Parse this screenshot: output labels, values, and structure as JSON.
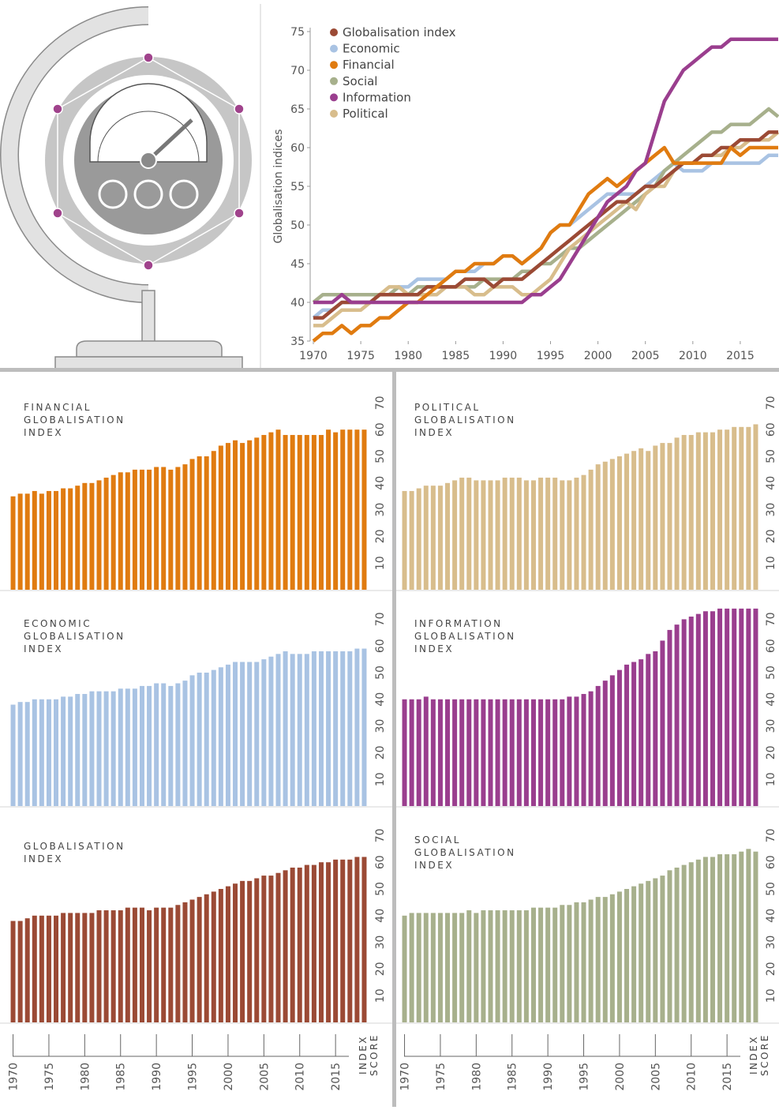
{
  "chart_data": [
    {
      "type": "line",
      "ylabel": "Globalisation indices",
      "x": [
        1970,
        1971,
        1972,
        1973,
        1974,
        1975,
        1976,
        1977,
        1978,
        1979,
        1980,
        1981,
        1982,
        1983,
        1984,
        1985,
        1986,
        1987,
        1988,
        1989,
        1990,
        1991,
        1992,
        1993,
        1994,
        1995,
        1996,
        1997,
        1998,
        1999,
        2000,
        2001,
        2002,
        2003,
        2004,
        2005,
        2006,
        2007,
        2008,
        2009,
        2010,
        2011,
        2012,
        2013,
        2014,
        2015,
        2016,
        2017,
        2018,
        2019
      ],
      "xlim": [
        1970,
        2019
      ],
      "xticks": [
        1970,
        1975,
        1980,
        1985,
        1990,
        1995,
        2000,
        2005,
        2010,
        2015
      ],
      "ylim": [
        35,
        75
      ],
      "yticks": [
        35,
        40,
        45,
        50,
        55,
        60,
        65,
        70,
        75
      ],
      "series": [
        {
          "name": "Globalisation index",
          "color": "#9b4a35",
          "values": [
            38,
            38,
            39,
            40,
            40,
            40,
            40,
            41,
            41,
            41,
            41,
            41,
            42,
            42,
            42,
            42,
            43,
            43,
            43,
            42,
            43,
            43,
            43,
            44,
            45,
            46,
            47,
            48,
            49,
            50,
            51,
            52,
            53,
            53,
            54,
            55,
            55,
            56,
            57,
            58,
            58,
            59,
            59,
            60,
            60,
            61,
            61,
            61,
            62,
            62
          ]
        },
        {
          "name": "Economic",
          "color": "#a9c3e3",
          "values": [
            38,
            39,
            39,
            40,
            40,
            40,
            40,
            41,
            41,
            42,
            42,
            43,
            43,
            43,
            43,
            44,
            44,
            44,
            45,
            45,
            46,
            46,
            45,
            46,
            47,
            49,
            50,
            50,
            51,
            52,
            53,
            54,
            54,
            54,
            54,
            55,
            56,
            57,
            58,
            57,
            57,
            57,
            58,
            58,
            58,
            58,
            58,
            58,
            59,
            59
          ]
        },
        {
          "name": "Financial",
          "color": "#e07b10",
          "values": [
            35,
            36,
            36,
            37,
            36,
            37,
            37,
            38,
            38,
            39,
            40,
            40,
            41,
            42,
            43,
            44,
            44,
            45,
            45,
            45,
            46,
            46,
            45,
            46,
            47,
            49,
            50,
            50,
            52,
            54,
            55,
            56,
            55,
            56,
            57,
            58,
            59,
            60,
            58,
            58,
            58,
            58,
            58,
            58,
            60,
            59,
            60,
            60,
            60,
            60
          ]
        },
        {
          "name": "Social",
          "color": "#a7b08c",
          "values": [
            40,
            41,
            41,
            41,
            41,
            41,
            41,
            41,
            41,
            42,
            41,
            42,
            42,
            42,
            42,
            42,
            42,
            42,
            43,
            43,
            43,
            43,
            44,
            44,
            45,
            45,
            46,
            47,
            47,
            48,
            49,
            50,
            51,
            52,
            53,
            54,
            55,
            57,
            58,
            59,
            60,
            61,
            62,
            62,
            63,
            63,
            63,
            64,
            65,
            64
          ]
        },
        {
          "name": "Information",
          "color": "#9a3e8e",
          "values": [
            40,
            40,
            40,
            41,
            40,
            40,
            40,
            40,
            40,
            40,
            40,
            40,
            40,
            40,
            40,
            40,
            40,
            40,
            40,
            40,
            40,
            40,
            40,
            41,
            41,
            42,
            43,
            45,
            47,
            49,
            51,
            53,
            54,
            55,
            57,
            58,
            62,
            66,
            68,
            70,
            71,
            72,
            73,
            73,
            74,
            74,
            74,
            74,
            74,
            74
          ]
        },
        {
          "name": "Political",
          "color": "#d8bd8c",
          "values": [
            37,
            37,
            38,
            39,
            39,
            39,
            40,
            41,
            42,
            42,
            41,
            41,
            41,
            41,
            42,
            42,
            42,
            41,
            41,
            42,
            42,
            42,
            41,
            41,
            42,
            43,
            45,
            47,
            48,
            49,
            50,
            51,
            52,
            53,
            52,
            54,
            55,
            55,
            57,
            58,
            58,
            59,
            59,
            59,
            60,
            60,
            61,
            61,
            61,
            62
          ]
        }
      ]
    },
    {
      "type": "bar",
      "title": [
        "FINANCIAL",
        "GLOBALISATION",
        "INDEX"
      ],
      "color": "#e07b10",
      "xlim": [
        1970,
        2019
      ],
      "ylim": [
        0,
        75
      ],
      "yticks": [
        10,
        20,
        30,
        40,
        50,
        60,
        70
      ],
      "values": [
        35,
        36,
        36,
        37,
        36,
        37,
        37,
        38,
        38,
        39,
        40,
        40,
        41,
        42,
        43,
        44,
        44,
        45,
        45,
        45,
        46,
        46,
        45,
        46,
        47,
        49,
        50,
        50,
        52,
        54,
        55,
        56,
        55,
        56,
        57,
        58,
        59,
        60,
        58,
        58,
        58,
        58,
        58,
        58,
        60,
        59,
        60,
        60,
        60,
        60
      ]
    },
    {
      "type": "bar",
      "title": [
        "POLITICAL",
        "GLOBALISATION",
        "INDEX"
      ],
      "color": "#d8bd8c",
      "xlim": [
        1970,
        2019
      ],
      "ylim": [
        0,
        75
      ],
      "yticks": [
        10,
        20,
        30,
        40,
        50,
        60,
        70
      ],
      "values": [
        37,
        37,
        38,
        39,
        39,
        39,
        40,
        41,
        42,
        42,
        41,
        41,
        41,
        41,
        42,
        42,
        42,
        41,
        41,
        42,
        42,
        42,
        41,
        41,
        42,
        43,
        45,
        47,
        48,
        49,
        50,
        51,
        52,
        53,
        52,
        54,
        55,
        55,
        57,
        58,
        58,
        59,
        59,
        59,
        60,
        60,
        61,
        61,
        61,
        62
      ]
    },
    {
      "type": "bar",
      "title": [
        "ECONOMIC",
        "GLOBALISATION",
        "INDEX"
      ],
      "color": "#a9c3e3",
      "xlim": [
        1970,
        2019
      ],
      "ylim": [
        0,
        75
      ],
      "yticks": [
        10,
        20,
        30,
        40,
        50,
        60,
        70
      ],
      "values": [
        38,
        39,
        39,
        40,
        40,
        40,
        40,
        41,
        41,
        42,
        42,
        43,
        43,
        43,
        43,
        44,
        44,
        44,
        45,
        45,
        46,
        46,
        45,
        46,
        47,
        49,
        50,
        50,
        51,
        52,
        53,
        54,
        54,
        54,
        54,
        55,
        56,
        57,
        58,
        57,
        57,
        57,
        58,
        58,
        58,
        58,
        58,
        58,
        59,
        59
      ]
    },
    {
      "type": "bar",
      "title": [
        "INFORMATION",
        "GLOBALISATION",
        "INDEX"
      ],
      "color": "#9a3e8e",
      "xlim": [
        1970,
        2019
      ],
      "ylim": [
        0,
        75
      ],
      "yticks": [
        10,
        20,
        30,
        40,
        50,
        60,
        70
      ],
      "values": [
        40,
        40,
        40,
        41,
        40,
        40,
        40,
        40,
        40,
        40,
        40,
        40,
        40,
        40,
        40,
        40,
        40,
        40,
        40,
        40,
        40,
        40,
        40,
        41,
        41,
        42,
        43,
        45,
        47,
        49,
        51,
        53,
        54,
        55,
        57,
        58,
        62,
        66,
        68,
        70,
        71,
        72,
        73,
        73,
        74,
        74,
        74,
        74,
        74,
        74
      ]
    },
    {
      "type": "bar",
      "title": [
        "GLOBALISATION",
        "INDEX"
      ],
      "color": "#9b4a35",
      "xlim": [
        1970,
        2019
      ],
      "ylim": [
        0,
        75
      ],
      "yticks": [
        10,
        20,
        30,
        40,
        50,
        60,
        70
      ],
      "xticks": [
        1970,
        1975,
        1980,
        1985,
        1990,
        1995,
        2000,
        2005,
        2010,
        2015
      ],
      "ylabel": [
        "INDEX",
        "SCORE"
      ],
      "values": [
        38,
        38,
        39,
        40,
        40,
        40,
        40,
        41,
        41,
        41,
        41,
        41,
        42,
        42,
        42,
        42,
        43,
        43,
        43,
        42,
        43,
        43,
        43,
        44,
        45,
        46,
        47,
        48,
        49,
        50,
        51,
        52,
        53,
        53,
        54,
        55,
        55,
        56,
        57,
        58,
        58,
        59,
        59,
        60,
        60,
        61,
        61,
        61,
        62,
        62
      ]
    },
    {
      "type": "bar",
      "title": [
        "SOCIAL",
        "GLOBALISATION",
        "INDEX"
      ],
      "color": "#a7b08c",
      "xlim": [
        1970,
        2019
      ],
      "ylim": [
        0,
        75
      ],
      "yticks": [
        10,
        20,
        30,
        40,
        50,
        60,
        70
      ],
      "xticks": [
        1970,
        1975,
        1980,
        1985,
        1990,
        1995,
        2000,
        2005,
        2010,
        2015
      ],
      "ylabel": [
        "INDEX",
        "SCORE"
      ],
      "values": [
        40,
        41,
        41,
        41,
        41,
        41,
        41,
        41,
        41,
        42,
        41,
        42,
        42,
        42,
        42,
        42,
        42,
        42,
        43,
        43,
        43,
        43,
        44,
        44,
        45,
        45,
        46,
        47,
        47,
        48,
        49,
        50,
        51,
        52,
        53,
        54,
        55,
        57,
        58,
        59,
        60,
        61,
        62,
        62,
        63,
        63,
        63,
        64,
        65,
        64
      ]
    }
  ]
}
